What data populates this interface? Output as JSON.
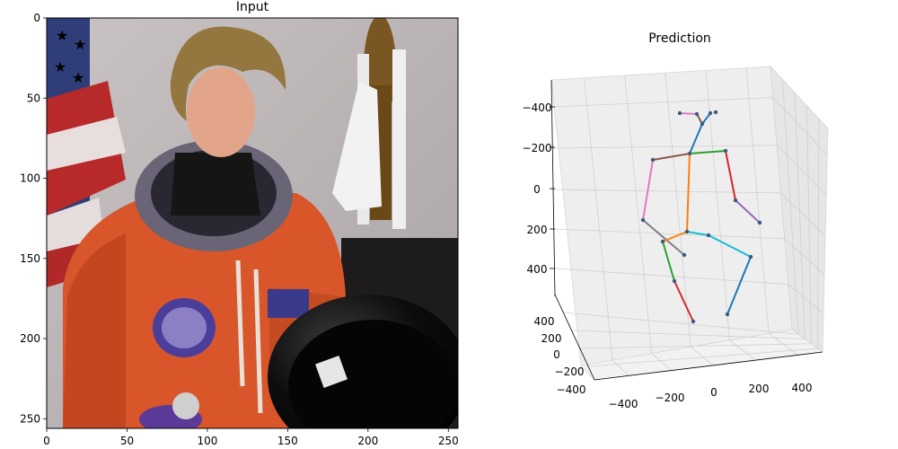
{
  "chart_data": [
    {
      "type": "image",
      "title": "Input",
      "xlim": [
        0,
        256
      ],
      "ylim": [
        256,
        0
      ],
      "xticks": [
        0,
        50,
        100,
        150,
        200,
        250
      ],
      "yticks": [
        0,
        50,
        100,
        150,
        200,
        250
      ],
      "xtick_labels": [
        "0",
        "50",
        "100",
        "150",
        "200",
        "250"
      ],
      "ytick_labels": [
        "0",
        "50",
        "100",
        "150",
        "200",
        "250"
      ]
    },
    {
      "type": "scatter3d",
      "title": "Prediction",
      "x_ticks": [
        "−400",
        "−200",
        "0",
        "200",
        "400"
      ],
      "y_ticks": [
        "−400",
        "−200",
        "0",
        "200",
        "400"
      ],
      "z_ticks": [
        "−400",
        "−200",
        "0",
        "200",
        "400"
      ],
      "grid": true
    }
  ],
  "colors": {
    "blue": "#1f77b4",
    "orange": "#ff7f0e",
    "green": "#2ca02c",
    "red": "#d62728",
    "purple": "#9467bd",
    "brown": "#8c564b",
    "pink": "#e377c2",
    "gray": "#7f7f7f",
    "cyan": "#17becf"
  }
}
